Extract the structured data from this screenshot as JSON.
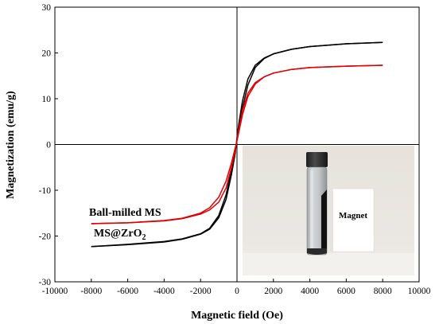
{
  "chart_data": {
    "type": "line",
    "xlabel": "Magnetic field (Oe)",
    "ylabel": "Magnetization (emu/g)",
    "xlim": [
      -10000,
      10000
    ],
    "ylim": [
      -30,
      30
    ],
    "xticks": [
      -10000,
      -8000,
      -6000,
      -4000,
      -2000,
      0,
      2000,
      4000,
      6000,
      8000,
      10000
    ],
    "yticks": [
      -30,
      -20,
      -10,
      0,
      10,
      20,
      30
    ],
    "xtick_labels": [
      "-10000",
      "-8000",
      "-6000",
      "-4000",
      "-2000",
      "0",
      "2000",
      "4000",
      "6000",
      "8000",
      "10000"
    ],
    "ytick_labels": [
      "-30",
      "-20",
      "-10",
      "0",
      "10",
      "20",
      "30"
    ],
    "grid": false,
    "series": [
      {
        "name": "Ball-milled MS",
        "color": "#e00000",
        "branch_up": [
          [
            -8000,
            -17.3
          ],
          [
            -6000,
            -17.1
          ],
          [
            -4000,
            -16.6
          ],
          [
            -3000,
            -16.1
          ],
          [
            -2000,
            -15.0
          ],
          [
            -1500,
            -13.8
          ],
          [
            -1000,
            -11.5
          ],
          [
            -600,
            -8.0
          ],
          [
            -300,
            -4.0
          ],
          [
            -100,
            -0.8
          ],
          [
            0,
            0.8
          ],
          [
            100,
            2.7
          ],
          [
            300,
            6.5
          ],
          [
            600,
            10.5
          ],
          [
            1000,
            13.2
          ],
          [
            1500,
            14.8
          ],
          [
            2000,
            15.6
          ],
          [
            3000,
            16.4
          ],
          [
            4000,
            16.8
          ],
          [
            6000,
            17.1
          ],
          [
            8000,
            17.3
          ]
        ],
        "branch_down": [
          [
            8000,
            17.3
          ],
          [
            6000,
            17.1
          ],
          [
            4000,
            16.8
          ],
          [
            3000,
            16.4
          ],
          [
            2000,
            15.6
          ],
          [
            1500,
            14.8
          ],
          [
            1000,
            13.5
          ],
          [
            600,
            11.2
          ],
          [
            300,
            7.5
          ],
          [
            100,
            3.5
          ],
          [
            0,
            1.0
          ],
          [
            -100,
            -1.5
          ],
          [
            -300,
            -5.0
          ],
          [
            -600,
            -9.5
          ],
          [
            -1000,
            -12.6
          ],
          [
            -1500,
            -14.3
          ],
          [
            -2000,
            -15.2
          ],
          [
            -3000,
            -16.2
          ],
          [
            -4000,
            -16.7
          ],
          [
            -6000,
            -17.1
          ],
          [
            -8000,
            -17.3
          ]
        ]
      },
      {
        "name": "MS@ZrO",
        "name_subscript": "2",
        "color": "#000000",
        "branch_up": [
          [
            -8000,
            -22.3
          ],
          [
            -6000,
            -21.8
          ],
          [
            -4000,
            -21.2
          ],
          [
            -3000,
            -20.6
          ],
          [
            -2000,
            -19.5
          ],
          [
            -1500,
            -18.3
          ],
          [
            -1000,
            -15.5
          ],
          [
            -600,
            -11.0
          ],
          [
            -300,
            -5.5
          ],
          [
            -100,
            -1.5
          ],
          [
            0,
            1.0
          ],
          [
            100,
            3.5
          ],
          [
            300,
            8.0
          ],
          [
            600,
            13.0
          ],
          [
            1000,
            16.8
          ],
          [
            1500,
            18.8
          ],
          [
            2000,
            19.8
          ],
          [
            3000,
            20.8
          ],
          [
            4000,
            21.4
          ],
          [
            6000,
            22.0
          ],
          [
            8000,
            22.3
          ]
        ],
        "branch_down": [
          [
            8000,
            22.3
          ],
          [
            6000,
            22.0
          ],
          [
            4000,
            21.4
          ],
          [
            3000,
            20.8
          ],
          [
            2000,
            19.8
          ],
          [
            1500,
            18.9
          ],
          [
            1000,
            17.3
          ],
          [
            600,
            14.3
          ],
          [
            300,
            9.5
          ],
          [
            100,
            4.5
          ],
          [
            0,
            1.5
          ],
          [
            -100,
            -2.0
          ],
          [
            -300,
            -6.5
          ],
          [
            -600,
            -12.0
          ],
          [
            -1000,
            -16.0
          ],
          [
            -1500,
            -18.5
          ],
          [
            -2000,
            -19.6
          ],
          [
            -3000,
            -20.7
          ],
          [
            -4000,
            -21.3
          ],
          [
            -6000,
            -21.9
          ],
          [
            -8000,
            -22.3
          ]
        ]
      }
    ],
    "annotations": [
      {
        "text": "Ball-milled MS",
        "target": "series.0"
      },
      {
        "text": "MS@ZrO",
        "subscript": "2",
        "target": "series.1"
      }
    ],
    "inset": {
      "type": "photo",
      "label": "Magnet",
      "description_colors": {
        "background": "#e8e4e0",
        "table": "#f4f2ef",
        "vial_cap": "#2b2b2b",
        "vial_glass": "#c7cbcd",
        "powder": "#111111",
        "magnet": "#ffffff"
      }
    }
  }
}
